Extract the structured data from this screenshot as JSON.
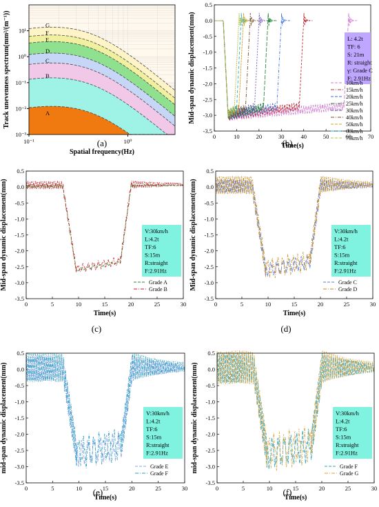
{
  "colors": {
    "grade_a": "#3a7d22",
    "grade_b": "#c0202a",
    "grade_c": "#5b7bd5",
    "grade_d": "#c8891a",
    "grade_e": "#8fa3e6",
    "grade_f": "#2ea3c2",
    "grade_g": "#d8a53c",
    "box_fill": "#7ff2e0",
    "box_fill_b": "#bfa6ff"
  },
  "chart_data": [
    {
      "id": "a",
      "panel_label": "(a)",
      "type": "area",
      "x_scale": "log",
      "y_scale": "log",
      "xlabel": "Spatial frequency(Hz)",
      "ylabel": "Track unevenness spectrum(mm²/(m⁻¹))",
      "xlim": [
        0.1,
        3
      ],
      "ylim": [
        0.001,
        100
      ],
      "x_ticks": [
        "10⁻¹",
        "10⁰"
      ],
      "y_ticks": [
        "10⁻³",
        "10⁻²",
        "10⁻¹",
        "10⁰",
        "10¹"
      ],
      "series": [
        {
          "name": "A",
          "peak": 0.016,
          "fill": "#f6d9c0"
        },
        {
          "name": "B",
          "peak": 0.2,
          "fill": "#9ef2e6"
        },
        {
          "name": "C",
          "peak": 0.75,
          "fill": "#f2c8e8"
        },
        {
          "name": "D",
          "peak": 1.8,
          "fill": "#c5d6f7"
        },
        {
          "name": "E",
          "peak": 5,
          "fill": "#8fe08f"
        },
        {
          "name": "F",
          "peak": 9,
          "fill": "#f0f0a0"
        },
        {
          "name": "G",
          "peak": 18,
          "fill": "#fff3c8"
        }
      ]
    },
    {
      "id": "b",
      "panel_label": "(b)",
      "type": "line",
      "xlabel": "Time(s)",
      "ylabel": "Mid-span dynamic displacement(mm)",
      "xlim": [
        0,
        70
      ],
      "ylim": [
        -3.5,
        0.5
      ],
      "x_ticks": [
        0,
        10,
        20,
        30,
        40,
        50,
        60,
        70
      ],
      "y_ticks": [
        "0.5",
        "0.0",
        "-0.5",
        "-1.0",
        "-1.5",
        "-2.0",
        "-2.5",
        "-3.0",
        "-3.5"
      ],
      "info": [
        "L: 4.2t",
        "TF: 6",
        "S: 21m",
        "R: straight",
        "γ: Grade C",
        "F: 2.91Hz"
      ],
      "series": [
        {
          "name": "10km/h",
          "end": 60,
          "color": "#d080d0"
        },
        {
          "name": "15km/h",
          "end": 40,
          "color": "#c02830"
        },
        {
          "name": "20km/h",
          "end": 30,
          "color": "#3a6fd8"
        },
        {
          "name": "25km/h",
          "end": 24,
          "color": "#2d8a3e"
        },
        {
          "name": "30km/h",
          "end": 20,
          "color": "#6a4bbf"
        },
        {
          "name": "40km/h",
          "end": 16,
          "color": "#7a4a2a"
        },
        {
          "name": "50km/h",
          "end": 13,
          "color": "#d8a020"
        },
        {
          "name": "60km/h",
          "end": 12,
          "color": "#1ab0c8"
        },
        {
          "name": "70km/h",
          "end": 11,
          "color": "#b8c040"
        }
      ]
    },
    {
      "id": "c",
      "panel_label": "(c)",
      "type": "line",
      "xlabel": "Time(s)",
      "ylabel": "Mid-span dynamic displacement(mm)",
      "xlim": [
        0,
        30
      ],
      "ylim": [
        -3.5,
        0.5
      ],
      "x_ticks": [
        0,
        5,
        10,
        15,
        20,
        25,
        30
      ],
      "y_ticks": [
        "0.5",
        "0.0",
        "-0.5",
        "-1.0",
        "-1.5",
        "-2.0",
        "-2.5",
        "-3.0",
        "-3.5"
      ],
      "info": [
        "V:30km/h",
        "L:4.2t",
        "TF:6",
        "S:15m",
        "R:straight",
        "F:2.91Hz"
      ],
      "series": [
        {
          "name": "Grade A",
          "amp": 0.04,
          "color": "#3a7d22"
        },
        {
          "name": "Grade B",
          "amp": 0.12,
          "color": "#c0202a"
        }
      ]
    },
    {
      "id": "d",
      "panel_label": "(d)",
      "type": "line",
      "xlabel": "Time(s)",
      "ylabel": "Mid-span dynamic displacement(mm)",
      "xlim": [
        0,
        30
      ],
      "ylim": [
        -3.5,
        0.5
      ],
      "x_ticks": [
        0,
        5,
        10,
        15,
        20,
        25,
        30
      ],
      "y_ticks": [
        "0.5",
        "0.0",
        "-0.5",
        "-1.0",
        "-1.5",
        "-2.0",
        "-2.5",
        "-3.0",
        "-3.5"
      ],
      "info": [
        "V:30km/h",
        "L:4.2t",
        "TF:6",
        "S:15m",
        "R:straight",
        "F:2.91Hz"
      ],
      "series": [
        {
          "name": "Grade C",
          "amp": 0.2,
          "color": "#5b7bd5"
        },
        {
          "name": "Grade D",
          "amp": 0.28,
          "color": "#c8891a"
        }
      ]
    },
    {
      "id": "e",
      "panel_label": "(e)",
      "type": "line",
      "xlabel": "Time(s)",
      "ylabel": "mid-span dynamic displacement(mm)",
      "xlim": [
        0,
        30
      ],
      "ylim": [
        -3.5,
        0.5
      ],
      "x_ticks": [
        0,
        5,
        10,
        15,
        20,
        25,
        30
      ],
      "y_ticks": [
        "0.5",
        "0.0",
        "-0.5",
        "-1.0",
        "-1.5",
        "-2.0",
        "-2.5",
        "-3.0",
        "-3.5"
      ],
      "info": [
        "V:30km/h",
        "L:4.2t",
        "TF:6",
        "S:15m",
        "R:straight",
        "F:2.91Hz"
      ],
      "series": [
        {
          "name": "Grade E",
          "amp": 0.38,
          "color": "#8fa3e6"
        },
        {
          "name": "Grade F",
          "amp": 0.45,
          "color": "#2ea3c2"
        }
      ]
    },
    {
      "id": "f",
      "panel_label": "(f)",
      "type": "line",
      "xlabel": "Time(s)",
      "ylabel": "mid-span dynamic displacement(mm)",
      "xlim": [
        0,
        30
      ],
      "ylim": [
        -3.5,
        0.5
      ],
      "x_ticks": [
        0,
        5,
        10,
        15,
        20,
        25,
        30
      ],
      "y_ticks": [
        "0.5",
        "0.0",
        "-0.5",
        "-1.0",
        "-1.5",
        "-2.0",
        "-2.5",
        "-3.0",
        "-3.5"
      ],
      "info": [
        "V:30km/h",
        "L:4.2t",
        "TF:6",
        "S:15m",
        "R:straight",
        "F:2.91Hz"
      ],
      "series": [
        {
          "name": "Grade F",
          "amp": 0.45,
          "color": "#2ea3c2"
        },
        {
          "name": "Grade G",
          "amp": 0.52,
          "color": "#d8a53c"
        }
      ]
    }
  ]
}
